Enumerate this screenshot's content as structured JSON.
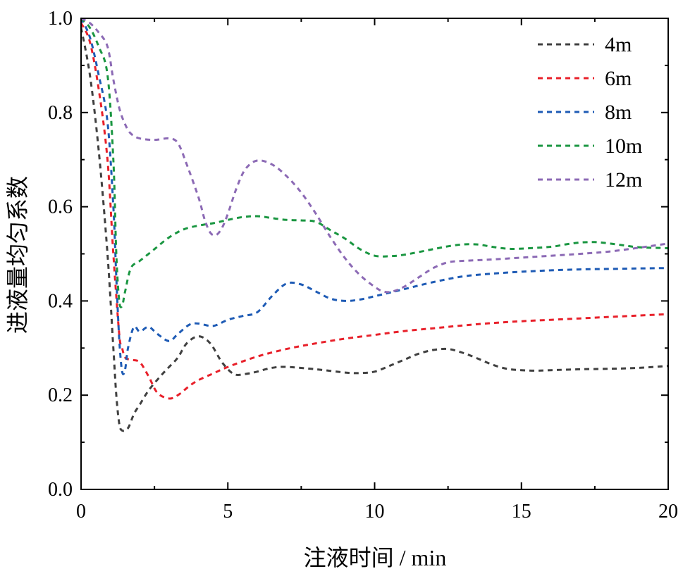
{
  "chart_data": {
    "type": "line",
    "xlabel": "注液时间 / min",
    "ylabel": "进液量均匀系数",
    "xlim": [
      0,
      20
    ],
    "ylim": [
      0,
      1.0
    ],
    "xticks": [
      0,
      5,
      10,
      15,
      20
    ],
    "xtick_labels": [
      "0",
      "5",
      "10",
      "15",
      "20"
    ],
    "yticks": [
      0,
      0.2,
      0.4,
      0.6,
      0.8,
      1.0
    ],
    "ytick_labels": [
      "0.0",
      "0.2",
      "0.4",
      "0.6",
      "0.8",
      "1.0"
    ],
    "grid": false,
    "legend_position": "top-right",
    "series": [
      {
        "name": "4m",
        "color": "#404040",
        "x": [
          0,
          0.3,
          0.6,
          0.9,
          1.1,
          1.2,
          1.3,
          1.4,
          1.6,
          1.8,
          2.0,
          2.3,
          2.7,
          3.0,
          3.3,
          3.6,
          4.0,
          4.4,
          4.8,
          5.2,
          5.6,
          6.0,
          6.5,
          7.0,
          8.0,
          9.0,
          9.5,
          10.0,
          10.5,
          11.0,
          11.5,
          12.0,
          12.5,
          13.0,
          13.5,
          14.0,
          14.5,
          15.0,
          15.5,
          16.0,
          17.0,
          18.0,
          19.0,
          20.0
        ],
        "y": [
          0.98,
          0.88,
          0.72,
          0.5,
          0.3,
          0.2,
          0.14,
          0.125,
          0.13,
          0.16,
          0.18,
          0.21,
          0.24,
          0.26,
          0.28,
          0.31,
          0.325,
          0.31,
          0.27,
          0.245,
          0.245,
          0.25,
          0.258,
          0.26,
          0.255,
          0.248,
          0.247,
          0.25,
          0.262,
          0.275,
          0.288,
          0.296,
          0.298,
          0.29,
          0.278,
          0.265,
          0.256,
          0.253,
          0.252,
          0.253,
          0.255,
          0.256,
          0.258,
          0.262
        ]
      },
      {
        "name": "6m",
        "color": "#e8202a",
        "x": [
          0,
          0.3,
          0.6,
          0.9,
          1.1,
          1.3,
          1.4,
          1.5,
          1.7,
          2.0,
          2.3,
          2.6,
          3.0,
          3.3,
          3.7,
          4.0,
          4.5,
          5.0,
          6.0,
          7.0,
          8.0,
          9.0,
          10.0,
          11.0,
          12.0,
          13.0,
          14.0,
          15.0,
          16.0,
          17.0,
          18.0,
          19.0,
          20.0
        ],
        "y": [
          0.99,
          0.95,
          0.85,
          0.7,
          0.5,
          0.33,
          0.3,
          0.28,
          0.275,
          0.27,
          0.24,
          0.205,
          0.193,
          0.2,
          0.22,
          0.232,
          0.246,
          0.26,
          0.282,
          0.298,
          0.31,
          0.32,
          0.328,
          0.336,
          0.342,
          0.348,
          0.353,
          0.357,
          0.36,
          0.363,
          0.366,
          0.369,
          0.372
        ]
      },
      {
        "name": "8m",
        "color": "#1e5bb5",
        "x": [
          0,
          0.3,
          0.6,
          0.9,
          1.1,
          1.2,
          1.3,
          1.4,
          1.5,
          1.6,
          1.8,
          2.0,
          2.3,
          2.6,
          3.0,
          3.3,
          3.7,
          4.0,
          4.5,
          5.0,
          5.5,
          6.0,
          6.5,
          7.0,
          7.5,
          8.0,
          8.5,
          9.0,
          9.5,
          10.0,
          11.0,
          12.0,
          13.0,
          14.0,
          15.0,
          16.0,
          17.0,
          18.0,
          19.0,
          20.0
        ],
        "y": [
          1.0,
          0.96,
          0.88,
          0.78,
          0.6,
          0.45,
          0.32,
          0.25,
          0.255,
          0.3,
          0.345,
          0.335,
          0.345,
          0.33,
          0.315,
          0.33,
          0.35,
          0.352,
          0.347,
          0.36,
          0.368,
          0.376,
          0.41,
          0.437,
          0.435,
          0.42,
          0.405,
          0.4,
          0.403,
          0.41,
          0.425,
          0.44,
          0.452,
          0.458,
          0.462,
          0.465,
          0.467,
          0.468,
          0.469,
          0.47
        ]
      },
      {
        "name": "10m",
        "color": "#1a9641",
        "x": [
          0,
          0.3,
          0.6,
          0.9,
          1.1,
          1.2,
          1.3,
          1.4,
          1.5,
          1.7,
          2.0,
          2.5,
          3.0,
          3.5,
          4.0,
          4.5,
          5.0,
          5.5,
          6.0,
          6.5,
          7.0,
          7.5,
          8.0,
          8.5,
          9.0,
          9.5,
          10.0,
          10.5,
          11.0,
          12.0,
          12.5,
          13.0,
          13.5,
          14.0,
          14.5,
          15.0,
          16.0,
          16.5,
          17.0,
          17.5,
          18.0,
          18.5,
          19.0,
          20.0
        ],
        "y": [
          1.0,
          0.98,
          0.94,
          0.88,
          0.7,
          0.5,
          0.4,
          0.39,
          0.42,
          0.47,
          0.485,
          0.51,
          0.535,
          0.552,
          0.56,
          0.565,
          0.572,
          0.578,
          0.58,
          0.576,
          0.572,
          0.571,
          0.568,
          0.55,
          0.532,
          0.51,
          0.496,
          0.495,
          0.498,
          0.51,
          0.516,
          0.52,
          0.52,
          0.515,
          0.511,
          0.511,
          0.515,
          0.52,
          0.524,
          0.525,
          0.522,
          0.518,
          0.514,
          0.512
        ]
      },
      {
        "name": "12m",
        "color": "#8c6ab5",
        "x": [
          0,
          0.3,
          0.6,
          0.9,
          1.1,
          1.3,
          1.5,
          1.7,
          2.0,
          2.5,
          3.0,
          3.3,
          3.6,
          4.0,
          4.2,
          4.4,
          4.6,
          4.8,
          5.0,
          5.3,
          5.6,
          6.0,
          6.5,
          7.0,
          7.5,
          8.0,
          8.5,
          9.0,
          9.5,
          10.0,
          10.3,
          10.6,
          11.0,
          11.5,
          12.0,
          12.5,
          13.0,
          14.0,
          15.0,
          16.0,
          17.0,
          18.0,
          19.0,
          20.0
        ],
        "y": [
          1.0,
          0.99,
          0.97,
          0.94,
          0.87,
          0.81,
          0.775,
          0.755,
          0.745,
          0.742,
          0.745,
          0.735,
          0.69,
          0.62,
          0.575,
          0.545,
          0.54,
          0.555,
          0.585,
          0.64,
          0.68,
          0.698,
          0.69,
          0.665,
          0.63,
          0.585,
          0.535,
          0.49,
          0.455,
          0.43,
          0.42,
          0.42,
          0.43,
          0.45,
          0.47,
          0.482,
          0.485,
          0.488,
          0.492,
          0.496,
          0.5,
          0.505,
          0.513,
          0.522
        ]
      }
    ]
  }
}
